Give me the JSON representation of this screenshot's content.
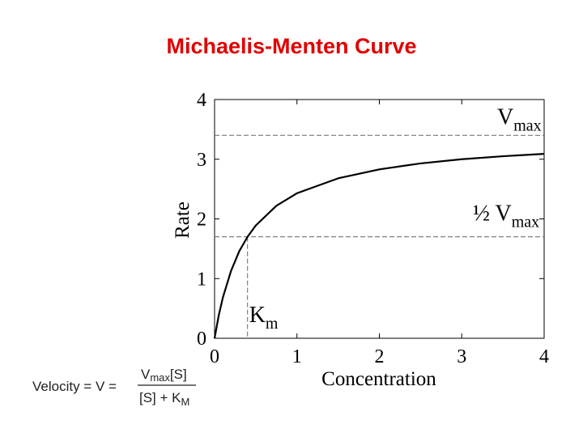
{
  "title": "Michaelis-Menten Curve",
  "chart_data": {
    "type": "line",
    "xlabel": "Concentration",
    "ylabel": "Rate",
    "x": [
      0,
      0.05,
      0.1,
      0.2,
      0.3,
      0.4,
      0.5,
      0.75,
      1,
      1.5,
      2,
      2.5,
      3,
      3.5,
      4
    ],
    "series": [
      {
        "color": "#000000",
        "values": [
          0,
          0.38,
          0.68,
          1.13,
          1.46,
          1.7,
          1.89,
          2.22,
          2.43,
          2.68,
          2.83,
          2.93,
          3.0,
          3.05,
          3.09
        ]
      }
    ],
    "xlim": [
      0,
      4
    ],
    "ylim": [
      0,
      4
    ],
    "xticks": [
      0,
      1,
      2,
      3,
      4
    ],
    "yticks": [
      0,
      1,
      2,
      3,
      4
    ],
    "grid": false,
    "reference_lines": {
      "vmax": 3.4,
      "half_vmax": 1.7,
      "km": 0.4
    },
    "annotations": {
      "vmax": {
        "text": "V",
        "sub": "max"
      },
      "half_vmax": {
        "text": "½ V",
        "sub": "max"
      },
      "km": {
        "text": "K",
        "sub": "m"
      }
    }
  },
  "formula": {
    "lhs": "Velocity = V =",
    "numerator": "V",
    "numerator_sub": "max",
    "numerator_rest": "[S]",
    "denominator": "[S] + K",
    "denominator_sub": "M"
  }
}
